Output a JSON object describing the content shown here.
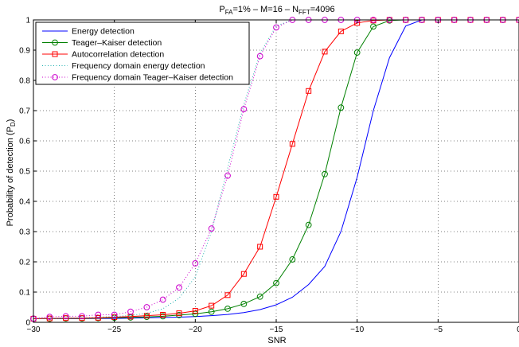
{
  "chart_data": {
    "type": "line",
    "title_parts": {
      "p": "P",
      "fa_sub": "FA",
      "mid": "=1% – M=16 – N",
      "fft_sub": "FFT",
      "end": "=4096"
    },
    "xlabel": "SNR",
    "ylabel_parts": {
      "main": "Probability of detection (P",
      "sub": "D",
      "close": ")"
    },
    "xlim": [
      -30,
      0
    ],
    "ylim": [
      0,
      1
    ],
    "xticks": [
      -30,
      -25,
      -20,
      -15,
      -10,
      -5,
      0
    ],
    "yticks": [
      0,
      0.1,
      0.2,
      0.3,
      0.4,
      0.5,
      0.6,
      0.7,
      0.8,
      0.9,
      1
    ],
    "grid": true,
    "legend_position": "top-left",
    "series": [
      {
        "name": "Energy detection",
        "color": "#0000ff",
        "line": "solid",
        "marker": "none",
        "x": [
          -30,
          -29,
          -28,
          -27,
          -26,
          -25,
          -24,
          -23,
          -22,
          -21,
          -20,
          -19,
          -18,
          -17,
          -16,
          -15,
          -14,
          -13,
          -12,
          -11,
          -10,
          -9,
          -8,
          -7,
          -6,
          -5,
          -4,
          -3,
          -2,
          -1,
          0
        ],
        "y": [
          0.012,
          0.012,
          0.012,
          0.012,
          0.013,
          0.013,
          0.014,
          0.015,
          0.016,
          0.017,
          0.019,
          0.022,
          0.026,
          0.032,
          0.042,
          0.058,
          0.083,
          0.125,
          0.185,
          0.3,
          0.48,
          0.7,
          0.875,
          0.98,
          1,
          1,
          1,
          1,
          1,
          1,
          1
        ]
      },
      {
        "name": "Teager–Kaiser detection",
        "color": "#008000",
        "line": "solid",
        "marker": "circle",
        "x": [
          -30,
          -29,
          -28,
          -27,
          -26,
          -25,
          -24,
          -23,
          -22,
          -21,
          -20,
          -19,
          -18,
          -17,
          -16,
          -15,
          -14,
          -13,
          -12,
          -11,
          -10,
          -9,
          -8,
          -7,
          -6,
          -5,
          -4,
          -3,
          -2,
          -1,
          0
        ],
        "y": [
          0.012,
          0.012,
          0.013,
          0.013,
          0.014,
          0.015,
          0.016,
          0.018,
          0.02,
          0.024,
          0.028,
          0.035,
          0.045,
          0.061,
          0.085,
          0.13,
          0.208,
          0.322,
          0.49,
          0.71,
          0.892,
          0.978,
          0.998,
          1,
          1,
          1,
          1,
          1,
          1,
          1,
          1
        ]
      },
      {
        "name": "Autocorrelation detection",
        "color": "#ff0000",
        "line": "solid",
        "marker": "square",
        "x": [
          -30,
          -29,
          -28,
          -27,
          -26,
          -25,
          -24,
          -23,
          -22,
          -21,
          -20,
          -19,
          -18,
          -17,
          -16,
          -15,
          -14,
          -13,
          -12,
          -11,
          -10,
          -9,
          -8,
          -7,
          -6,
          -5,
          -4,
          -3,
          -2,
          -1,
          0
        ],
        "y": [
          0.012,
          0.013,
          0.014,
          0.014,
          0.015,
          0.017,
          0.019,
          0.022,
          0.025,
          0.03,
          0.038,
          0.055,
          0.09,
          0.16,
          0.25,
          0.415,
          0.59,
          0.765,
          0.895,
          0.962,
          0.99,
          0.998,
          1,
          1,
          1,
          1,
          1,
          1,
          1,
          1,
          1
        ]
      },
      {
        "name": "Frequency domain energy detection",
        "color": "#20b0b0",
        "line": "dotted",
        "marker": "none",
        "x": [
          -30,
          -29,
          -28,
          -27,
          -26,
          -25,
          -24,
          -23,
          -22,
          -21,
          -20,
          -19,
          -18,
          -17,
          -16,
          -15,
          -14,
          -13,
          -12,
          -11,
          -10,
          -9,
          -8,
          -7,
          -6,
          -5,
          -4,
          -3,
          -2,
          -1,
          0
        ],
        "y": [
          0.012,
          0.013,
          0.014,
          0.015,
          0.017,
          0.019,
          0.023,
          0.03,
          0.045,
          0.08,
          0.15,
          0.3,
          0.51,
          0.72,
          0.89,
          0.98,
          1,
          1,
          1,
          1,
          1,
          1,
          1,
          1,
          1,
          1,
          1,
          1,
          1,
          1,
          1
        ]
      },
      {
        "name": "Frequency domain Teager–Kaiser detection",
        "color": "#cc00cc",
        "line": "dotted",
        "marker": "circle",
        "x": [
          -30,
          -29,
          -28,
          -27,
          -26,
          -25,
          -24,
          -23,
          -22,
          -21,
          -20,
          -19,
          -18,
          -17,
          -16,
          -15,
          -14,
          -13,
          -12,
          -11,
          -10,
          -9,
          -8,
          -7,
          -6,
          -5,
          -4,
          -3,
          -2,
          -1,
          0
        ],
        "y": [
          0.012,
          0.018,
          0.02,
          0.02,
          0.025,
          0.025,
          0.035,
          0.05,
          0.075,
          0.115,
          0.195,
          0.31,
          0.485,
          0.705,
          0.88,
          0.975,
          1,
          1,
          1,
          1,
          1,
          1,
          1,
          1,
          1,
          1,
          1,
          1,
          1,
          1,
          1
        ]
      }
    ]
  }
}
